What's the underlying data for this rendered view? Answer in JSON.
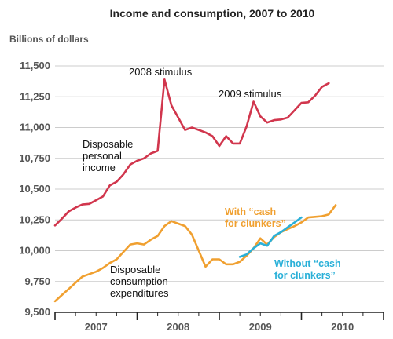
{
  "chart_data": {
    "type": "line",
    "title": "Income and consumption, 2007 to 2010",
    "ylabel": "Billions of dollars",
    "xlabel": "",
    "ylim": [
      9500,
      11500
    ],
    "xlim": [
      2007.0,
      2011.0
    ],
    "y_ticks": [
      "9,500",
      "9,750",
      "10,000",
      "10,250",
      "10,500",
      "10,750",
      "11,000",
      "11,250",
      "11,500"
    ],
    "y_tick_values": [
      9500,
      9750,
      10000,
      10250,
      10500,
      10750,
      11000,
      11250,
      11500
    ],
    "x_ticks": [
      "2007",
      "2008",
      "2009",
      "2010"
    ],
    "grid": true,
    "colors": {
      "income": "#d1364d",
      "consumption": "#f0a030",
      "without_clunkers": "#2ab0d8",
      "axis": "#222222",
      "grid": "#cccccc"
    },
    "series": [
      {
        "key": "income",
        "x": [
          2007.0,
          2007.083,
          2007.167,
          2007.25,
          2007.333,
          2007.417,
          2007.5,
          2007.583,
          2007.667,
          2007.75,
          2007.833,
          2007.917,
          2008.0,
          2008.083,
          2008.167,
          2008.25,
          2008.333,
          2008.417,
          2008.5,
          2008.583,
          2008.667,
          2008.75,
          2008.833,
          2008.917,
          2009.0,
          2009.083,
          2009.167,
          2009.25,
          2009.333,
          2009.417,
          2009.5,
          2009.583,
          2009.667,
          2009.75,
          2009.833,
          2009.917,
          2010.0,
          2010.083,
          2010.167,
          2010.25,
          2010.333
        ],
        "values": [
          10205,
          10260,
          10320,
          10350,
          10375,
          10380,
          10410,
          10440,
          10530,
          10560,
          10620,
          10700,
          10730,
          10750,
          10790,
          10810,
          11390,
          11180,
          11080,
          10980,
          11000,
          10980,
          10960,
          10930,
          10850,
          10930,
          10870,
          10870,
          11010,
          11210,
          11090,
          11040,
          11060,
          11065,
          11080,
          11140,
          11200,
          11205,
          11260,
          11330,
          11360
        ]
      },
      {
        "key": "consumption",
        "x": [
          2007.0,
          2007.083,
          2007.167,
          2007.25,
          2007.333,
          2007.417,
          2007.5,
          2007.583,
          2007.667,
          2007.75,
          2007.833,
          2007.917,
          2008.0,
          2008.083,
          2008.167,
          2008.25,
          2008.333,
          2008.417,
          2008.5,
          2008.583,
          2008.667,
          2008.75,
          2008.833,
          2008.917,
          2009.0,
          2009.083,
          2009.167,
          2009.25,
          2009.333,
          2009.417,
          2009.5,
          2009.583,
          2009.667,
          2009.75,
          2009.833,
          2009.917,
          2010.0,
          2010.083,
          2010.167,
          2010.25,
          2010.333,
          2010.417
        ],
        "values": [
          9590,
          9640,
          9690,
          9740,
          9790,
          9810,
          9830,
          9860,
          9900,
          9930,
          9990,
          10050,
          10060,
          10050,
          10090,
          10120,
          10200,
          10240,
          10220,
          10200,
          10130,
          10000,
          9870,
          9930,
          9930,
          9890,
          9890,
          9910,
          9960,
          10020,
          10100,
          10050,
          10110,
          10150,
          10175,
          10200,
          10230,
          10270,
          10275,
          10280,
          10295,
          10370
        ]
      },
      {
        "key": "without_clunkers",
        "x": [
          2009.25,
          2009.333,
          2009.417,
          2009.5,
          2009.583,
          2009.667,
          2009.75,
          2009.833,
          2009.917,
          2010.0
        ],
        "values": [
          9950,
          9970,
          10020,
          10060,
          10040,
          10120,
          10150,
          10190,
          10230,
          10270
        ]
      }
    ],
    "annotations": {
      "stimulus_2008": "2008 stimulus",
      "stimulus_2009": "2009 stimulus",
      "income_label": [
        "Disposable",
        "personal",
        "income"
      ],
      "consumption_label": [
        "Disposable",
        "consumption",
        "expenditures"
      ],
      "with_clunkers": [
        "With “cash",
        "for clunkers”"
      ],
      "without_clunkers": [
        "Without “cash",
        "for clunkers”"
      ]
    }
  }
}
